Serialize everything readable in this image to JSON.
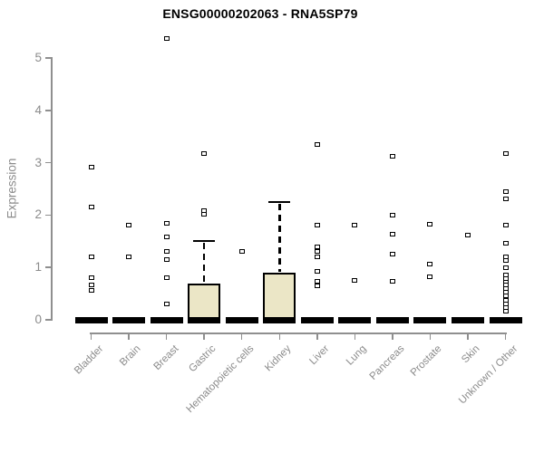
{
  "chart_data": {
    "type": "boxplot",
    "title": "ENSG00000202063 - RNA5SP79",
    "ylabel": "Expression",
    "xlabel": "",
    "ylim": [
      0,
      5
    ],
    "yticks": [
      0,
      1,
      2,
      3,
      4,
      5
    ],
    "grid": false,
    "legend": "none",
    "marker_style": "open-square",
    "colors": {
      "box_fill": "#ebe6c6",
      "box_stroke": "#000000",
      "axis": "#8f8f8f",
      "axis_text": "#8b8b8b",
      "title_text": "#000000"
    },
    "categories": [
      "Bladder",
      "Brain",
      "Breast",
      "Gastric",
      "Hematopoietic cells",
      "Kidney",
      "Liver",
      "Lung",
      "Pancreas",
      "Prostate",
      "Skin",
      "Unknown / Other"
    ],
    "groups": [
      {
        "label": "Bladder",
        "box": {
          "median": 0,
          "q1": 0,
          "q3": 0,
          "whisker_high": 0
        },
        "points": [
          2.91,
          2.16,
          1.21,
          0.8,
          0.66,
          0.57
        ]
      },
      {
        "label": "Brain",
        "box": {
          "median": 0,
          "q1": 0,
          "q3": 0,
          "whisker_high": 0
        },
        "points": [
          1.8,
          1.21
        ]
      },
      {
        "label": "Breast",
        "box": {
          "median": 0,
          "q1": 0,
          "q3": 0,
          "whisker_high": 0
        },
        "points": [
          5.38,
          1.85,
          1.58,
          1.31,
          1.15,
          0.8,
          0.31
        ]
      },
      {
        "label": "Gastric",
        "box": {
          "median": 0,
          "q1": 0,
          "q3": 0.69,
          "whisker_high": 1.51
        },
        "points": [
          3.17,
          2.09,
          2.02
        ]
      },
      {
        "label": "Hematopoietic cells",
        "box": {
          "median": 0,
          "q1": 0,
          "q3": 0,
          "whisker_high": 0
        },
        "points": [
          1.31
        ]
      },
      {
        "label": "Kidney",
        "box": {
          "median": 0,
          "q1": 0,
          "q3": 0.9,
          "whisker_high": 2.25
        },
        "points": []
      },
      {
        "label": "Liver",
        "box": {
          "median": 0,
          "q1": 0,
          "q3": 0,
          "whisker_high": 0
        },
        "points": [
          3.35,
          1.81,
          1.4,
          1.31,
          1.21,
          0.93,
          0.73,
          0.65
        ]
      },
      {
        "label": "Lung",
        "box": {
          "median": 0,
          "q1": 0,
          "q3": 0,
          "whisker_high": 0
        },
        "points": [
          1.8,
          0.76
        ]
      },
      {
        "label": "Pancreas",
        "box": {
          "median": 0,
          "q1": 0,
          "q3": 0,
          "whisker_high": 0
        },
        "points": [
          3.13,
          1.99,
          1.64,
          1.26,
          0.73
        ]
      },
      {
        "label": "Prostate",
        "box": {
          "median": 0,
          "q1": 0,
          "q3": 0,
          "whisker_high": 0
        },
        "points": [
          1.83,
          1.06,
          0.83
        ]
      },
      {
        "label": "Skin",
        "box": {
          "median": 0,
          "q1": 0,
          "q3": 0,
          "whisker_high": 0
        },
        "points": [
          1.61
        ]
      },
      {
        "label": "Unknown / Other",
        "box": {
          "median": 0,
          "q1": 0,
          "q3": 0,
          "whisker_high": 0
        },
        "points": [
          3.18,
          2.45,
          2.31,
          1.81,
          1.47,
          1.2,
          1.14,
          0.99,
          0.85,
          0.79,
          0.72,
          0.66,
          0.59,
          0.52,
          0.45,
          0.38,
          0.31,
          0.24,
          0.17
        ]
      }
    ]
  }
}
